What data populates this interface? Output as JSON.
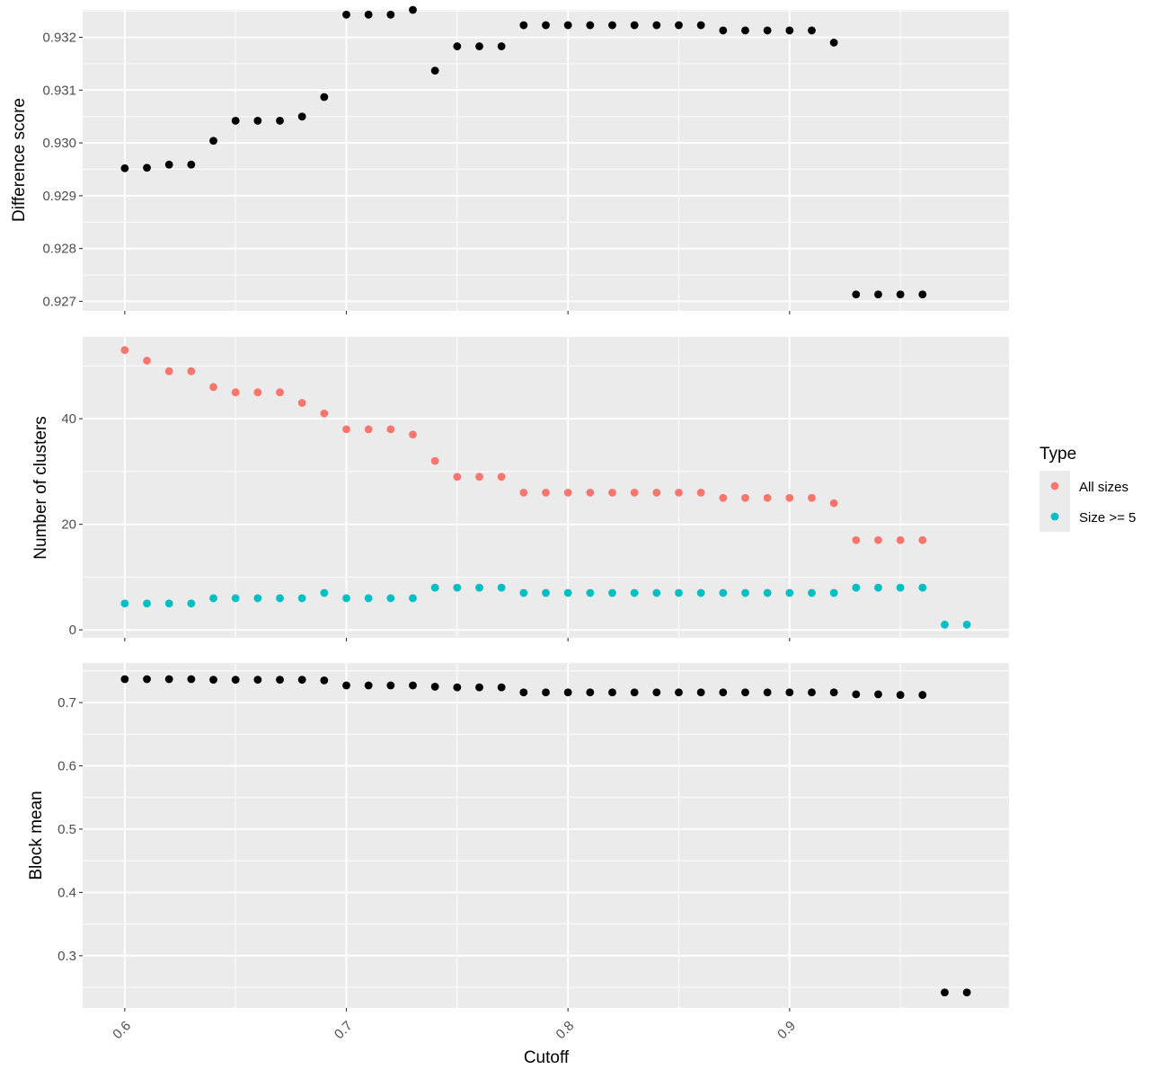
{
  "chart_data": [
    {
      "type": "scatter",
      "ylabel": "Difference score",
      "xlim": [
        0.581,
        0.999
      ],
      "ylim": [
        0.92682,
        0.93252
      ],
      "yticks": [
        "0.927",
        "0.928",
        "0.929",
        "0.930",
        "0.931",
        "0.932"
      ],
      "series": [
        {
          "color": "#000000",
          "x": [
            0.6,
            0.61,
            0.62,
            0.63,
            0.64,
            0.65,
            0.66,
            0.67,
            0.68,
            0.69,
            0.7,
            0.71,
            0.72,
            0.73,
            0.74,
            0.75,
            0.76,
            0.77,
            0.78,
            0.79,
            0.8,
            0.81,
            0.82,
            0.83,
            0.84,
            0.85,
            0.86,
            0.87,
            0.88,
            0.89,
            0.9,
            0.91,
            0.92,
            0.93,
            0.94,
            0.95,
            0.96
          ],
          "y": [
            0.92952,
            0.92953,
            0.92959,
            0.92959,
            0.93004,
            0.93042,
            0.93042,
            0.93042,
            0.9305,
            0.93087,
            0.93243,
            0.93243,
            0.93243,
            0.93252,
            0.93137,
            0.93183,
            0.93183,
            0.93183,
            0.93223,
            0.93223,
            0.93223,
            0.93223,
            0.93223,
            0.93223,
            0.93223,
            0.93223,
            0.93223,
            0.93213,
            0.93213,
            0.93213,
            0.93213,
            0.93213,
            0.9319,
            0.92713,
            0.92713,
            0.92713,
            0.92713
          ]
        }
      ]
    },
    {
      "type": "scatter",
      "ylabel": "Number of clusters",
      "xlim": [
        0.581,
        0.999
      ],
      "ylim": [
        -1.5,
        55.5
      ],
      "yticks": [
        "0",
        "20",
        "40"
      ],
      "legend": {
        "title": "Type",
        "placement": "right",
        "entries": [
          "All sizes",
          "Size >= 5"
        ]
      },
      "series": [
        {
          "name": "All sizes",
          "color": "#F8766D",
          "x": [
            0.6,
            0.61,
            0.62,
            0.63,
            0.64,
            0.65,
            0.66,
            0.67,
            0.68,
            0.69,
            0.7,
            0.71,
            0.72,
            0.73,
            0.74,
            0.75,
            0.76,
            0.77,
            0.78,
            0.79,
            0.8,
            0.81,
            0.82,
            0.83,
            0.84,
            0.85,
            0.86,
            0.87,
            0.88,
            0.89,
            0.9,
            0.91,
            0.92,
            0.93,
            0.94,
            0.95,
            0.96
          ],
          "y": [
            53,
            51,
            49,
            49,
            46,
            45,
            45,
            45,
            43,
            41,
            38,
            38,
            38,
            37,
            32,
            29,
            29,
            29,
            26,
            26,
            26,
            26,
            26,
            26,
            26,
            26,
            26,
            25,
            25,
            25,
            25,
            25,
            24,
            17,
            17,
            17,
            17
          ]
        },
        {
          "name": "Size >= 5",
          "color": "#00BFC4",
          "x": [
            0.6,
            0.61,
            0.62,
            0.63,
            0.64,
            0.65,
            0.66,
            0.67,
            0.68,
            0.69,
            0.7,
            0.71,
            0.72,
            0.73,
            0.74,
            0.75,
            0.76,
            0.77,
            0.78,
            0.79,
            0.8,
            0.81,
            0.82,
            0.83,
            0.84,
            0.85,
            0.86,
            0.87,
            0.88,
            0.89,
            0.9,
            0.91,
            0.92,
            0.93,
            0.94,
            0.95,
            0.96,
            0.97,
            0.98
          ],
          "y": [
            5,
            5,
            5,
            5,
            6,
            6,
            6,
            6,
            6,
            7,
            6,
            6,
            6,
            6,
            8,
            8,
            8,
            8,
            7,
            7,
            7,
            7,
            7,
            7,
            7,
            7,
            7,
            7,
            7,
            7,
            7,
            7,
            7,
            8,
            8,
            8,
            8,
            1,
            1
          ]
        }
      ]
    },
    {
      "type": "scatter",
      "ylabel": "Block mean",
      "xlabel": "Cutoff",
      "xlim": [
        0.581,
        0.999
      ],
      "ylim": [
        0.2175,
        0.7625
      ],
      "yticks": [
        "0.3",
        "0.4",
        "0.5",
        "0.6",
        "0.7"
      ],
      "xticks": [
        "0.6",
        "0.7",
        "0.8",
        "0.9"
      ],
      "series": [
        {
          "color": "#000000",
          "x": [
            0.6,
            0.61,
            0.62,
            0.63,
            0.64,
            0.65,
            0.66,
            0.67,
            0.68,
            0.69,
            0.7,
            0.71,
            0.72,
            0.73,
            0.74,
            0.75,
            0.76,
            0.77,
            0.78,
            0.79,
            0.8,
            0.81,
            0.82,
            0.83,
            0.84,
            0.85,
            0.86,
            0.87,
            0.88,
            0.89,
            0.9,
            0.91,
            0.92,
            0.93,
            0.94,
            0.95,
            0.96,
            0.97,
            0.98
          ],
          "y": [
            0.737,
            0.737,
            0.737,
            0.737,
            0.736,
            0.736,
            0.736,
            0.736,
            0.736,
            0.735,
            0.727,
            0.727,
            0.727,
            0.727,
            0.725,
            0.724,
            0.724,
            0.724,
            0.716,
            0.716,
            0.716,
            0.716,
            0.716,
            0.716,
            0.716,
            0.716,
            0.716,
            0.716,
            0.716,
            0.716,
            0.716,
            0.716,
            0.716,
            0.713,
            0.713,
            0.712,
            0.712,
            0.242,
            0.242
          ]
        }
      ]
    }
  ]
}
